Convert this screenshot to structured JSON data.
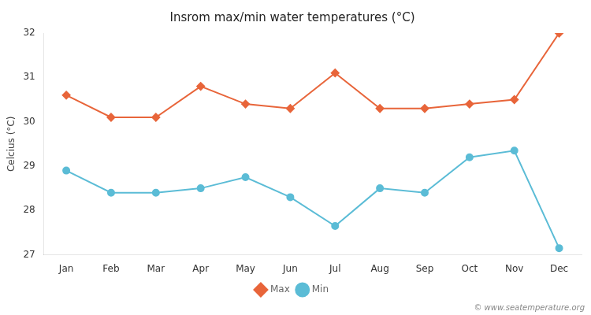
{
  "chart_data": {
    "type": "line",
    "title": "Insrom max/min water temperatures (°C)",
    "y_label": "Celcius (°C)",
    "categories": [
      "Jan",
      "Feb",
      "Mar",
      "Apr",
      "May",
      "Jun",
      "Jul",
      "Aug",
      "Sep",
      "Oct",
      "Nov",
      "Dec"
    ],
    "series": [
      {
        "name": "Max",
        "color": "#e8653a",
        "marker": "diamond",
        "values": [
          30.6,
          30.1,
          30.1,
          30.8,
          30.4,
          30.3,
          31.1,
          30.3,
          30.3,
          30.4,
          30.5,
          32.0
        ]
      },
      {
        "name": "Min",
        "color": "#5bbcd6",
        "marker": "circle",
        "values": [
          28.9,
          28.4,
          28.4,
          28.5,
          28.75,
          28.3,
          27.65,
          28.5,
          28.4,
          29.2,
          29.35,
          27.15
        ]
      }
    ],
    "ylim": [
      27,
      32
    ],
    "yticks": [
      27,
      28,
      29,
      30,
      31,
      32
    ],
    "grid": false,
    "legend": "bottom",
    "annotations": [
      "© www.seatemperature.org"
    ]
  }
}
